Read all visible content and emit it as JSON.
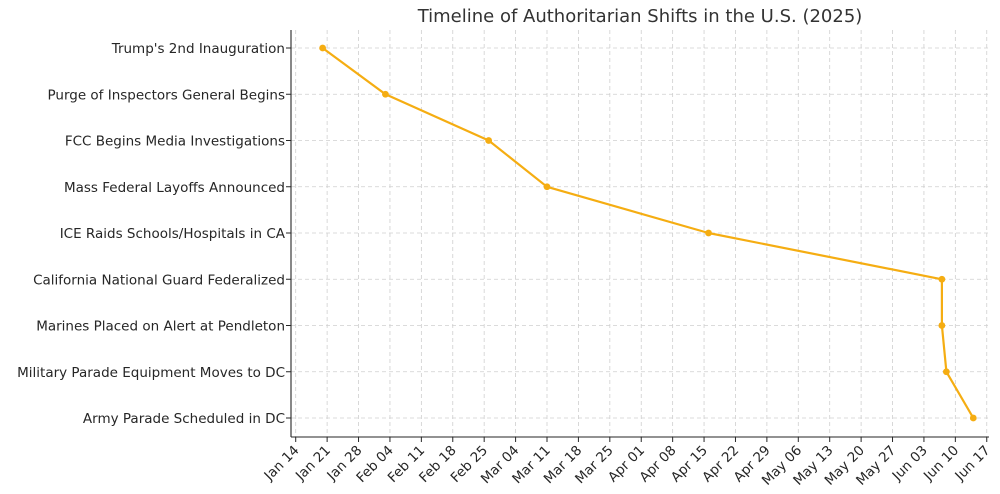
{
  "chart_data": {
    "type": "line",
    "title": "Timeline of Authoritarian Shifts in the U.S. (2025)",
    "xlabel": "",
    "ylabel": "",
    "grid": true,
    "line_color": "#f5ad12",
    "x_ticks": [
      "Jan 14",
      "Jan 21",
      "Jan 28",
      "Feb 04",
      "Feb 11",
      "Feb 18",
      "Feb 25",
      "Mar 04",
      "Mar 11",
      "Mar 18",
      "Mar 25",
      "Apr 01",
      "Apr 08",
      "Apr 15",
      "Apr 22",
      "Apr 29",
      "May 06",
      "May 13",
      "May 20",
      "May 27",
      "Jun 03",
      "Jun 10",
      "Jun 17"
    ],
    "x_tick_dates": [
      "2025-01-14",
      "2025-01-21",
      "2025-01-28",
      "2025-02-04",
      "2025-02-11",
      "2025-02-18",
      "2025-02-25",
      "2025-03-04",
      "2025-03-11",
      "2025-03-18",
      "2025-03-25",
      "2025-04-01",
      "2025-04-08",
      "2025-04-15",
      "2025-04-22",
      "2025-04-29",
      "2025-05-06",
      "2025-05-13",
      "2025-05-20",
      "2025-05-27",
      "2025-06-03",
      "2025-06-10",
      "2025-06-17"
    ],
    "xlim": [
      "2025-01-14",
      "2025-06-17"
    ],
    "events": [
      {
        "label": "Trump's 2nd Inauguration",
        "date": "2025-01-20"
      },
      {
        "label": "Purge of Inspectors General Begins",
        "date": "2025-02-03"
      },
      {
        "label": "FCC Begins Media Investigations",
        "date": "2025-02-26"
      },
      {
        "label": "Mass Federal Layoffs Announced",
        "date": "2025-03-11"
      },
      {
        "label": "ICE Raids Schools/Hospitals in CA",
        "date": "2025-04-16"
      },
      {
        "label": "California National Guard Federalized",
        "date": "2025-06-07"
      },
      {
        "label": "Marines Placed on Alert at Pendleton",
        "date": "2025-06-07"
      },
      {
        "label": "Military Parade Equipment Moves to DC",
        "date": "2025-06-08"
      },
      {
        "label": "Army Parade Scheduled in DC",
        "date": "2025-06-14"
      }
    ]
  }
}
